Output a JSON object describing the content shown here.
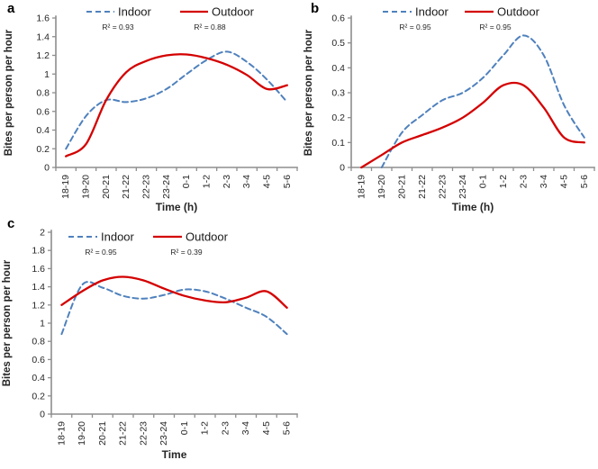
{
  "figure": {
    "background": "#ffffff"
  },
  "colors": {
    "indoor": "#4F81BD",
    "outdoor": "#D40000",
    "axis": "#8E8E8E",
    "text": "#262626"
  },
  "chart_data": [
    {
      "id": "a",
      "type": "line",
      "panel_label": "a",
      "ylabel": "Bites per person per hour",
      "xlabel": "Time (h)",
      "categories": [
        "18-19",
        "19-20",
        "20-21",
        "21-22",
        "22-23",
        "23-24",
        "0-1",
        "1-2",
        "2-3",
        "3-4",
        "4-5",
        "5-6"
      ],
      "ylim": [
        0,
        1.6
      ],
      "yticks": [
        "0",
        "0.2",
        "0.4",
        "0.6",
        "0.8",
        "1",
        "1.2",
        "1.4",
        "1.6"
      ],
      "grid": false,
      "legend_position": "top",
      "series": [
        {
          "name": "Indoor",
          "r2": "R² = 0.93",
          "color": "#4F81BD",
          "dashed": true,
          "values": [
            0.2,
            0.55,
            0.72,
            0.7,
            0.74,
            0.84,
            1.0,
            1.15,
            1.24,
            1.13,
            0.94,
            0.7
          ]
        },
        {
          "name": "Outdoor",
          "r2": "R² = 0.88",
          "color": "#D40000",
          "dashed": false,
          "values": [
            0.12,
            0.25,
            0.72,
            1.02,
            1.14,
            1.2,
            1.21,
            1.17,
            1.1,
            0.99,
            0.84,
            0.88
          ]
        }
      ]
    },
    {
      "id": "b",
      "type": "line",
      "panel_label": "b",
      "ylabel": "Bites per person per hour",
      "xlabel": "Time (h)",
      "categories": [
        "18-19",
        "19-20",
        "20-21",
        "21-22",
        "22-23",
        "23-24",
        "0-1",
        "1-2",
        "2-3",
        "3-4",
        "4-5",
        "5-6"
      ],
      "ylim": [
        0,
        0.6
      ],
      "yticks": [
        "0",
        "0.1",
        "0.2",
        "0.3",
        "0.4",
        "0.5",
        "0.6"
      ],
      "grid": false,
      "legend_position": "top",
      "series": [
        {
          "name": "Indoor",
          "r2": "R² = 0.95",
          "color": "#4F81BD",
          "dashed": true,
          "values": [
            null,
            0.0,
            0.14,
            0.21,
            0.27,
            0.3,
            0.36,
            0.45,
            0.53,
            0.45,
            0.25,
            0.12
          ]
        },
        {
          "name": "Outdoor",
          "r2": "R² = 0.95",
          "color": "#D40000",
          "dashed": false,
          "values": [
            0.0,
            0.05,
            0.1,
            0.13,
            0.16,
            0.2,
            0.26,
            0.33,
            0.33,
            0.24,
            0.12,
            0.1
          ]
        }
      ]
    },
    {
      "id": "c",
      "type": "line",
      "panel_label": "c",
      "ylabel": "Bites per person per hour",
      "xlabel": "Time",
      "categories": [
        "18-19",
        "19-20",
        "20-21",
        "21-22",
        "22-23",
        "23-24",
        "0-1",
        "1-2",
        "2-3",
        "3-4",
        "4-5",
        "5-6"
      ],
      "ylim": [
        0,
        2
      ],
      "yticks": [
        "0",
        "0.2",
        "0.4",
        "0.6",
        "0.8",
        "1",
        "1.2",
        "1.4",
        "1.6",
        "1.8",
        "2"
      ],
      "grid": false,
      "legend_position": "top",
      "series": [
        {
          "name": "Indoor",
          "r2": "R² = 0.95",
          "color": "#4F81BD",
          "dashed": true,
          "values": [
            0.88,
            1.42,
            1.39,
            1.3,
            1.27,
            1.31,
            1.37,
            1.35,
            1.27,
            1.17,
            1.07,
            0.88
          ]
        },
        {
          "name": "Outdoor",
          "r2": "R² = 0.39",
          "color": "#D40000",
          "dashed": false,
          "values": [
            1.2,
            1.35,
            1.47,
            1.51,
            1.47,
            1.38,
            1.3,
            1.25,
            1.23,
            1.28,
            1.35,
            1.17
          ]
        }
      ]
    }
  ]
}
